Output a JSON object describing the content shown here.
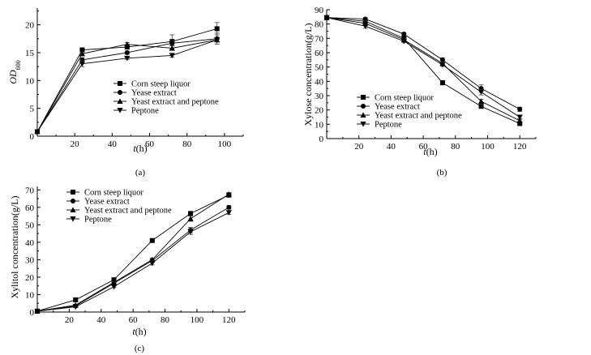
{
  "chart_data": [
    {
      "id": "a",
      "type": "line",
      "panel_label": "(a)",
      "xlabel_italic": "t",
      "xlabel_unit": "(h)",
      "ylabel_main": "OD",
      "ylabel_sub": "600",
      "xlim": [
        0,
        110
      ],
      "ylim": [
        0,
        23
      ],
      "xticks": [
        20,
        40,
        60,
        80,
        100
      ],
      "yticks": [
        0,
        5,
        10,
        15,
        20
      ],
      "legend_position": "center-right",
      "series": [
        {
          "name": "Corn steep liquor",
          "marker": "square",
          "x": [
            0,
            24,
            48,
            72,
            96
          ],
          "y": [
            0.8,
            15.5,
            16.0,
            17.0,
            19.3
          ],
          "err": [
            0,
            0.2,
            0.3,
            1.2,
            1.1
          ]
        },
        {
          "name": "Yease extract",
          "marker": "circle",
          "x": [
            0,
            24,
            48,
            72,
            96
          ],
          "y": [
            0.8,
            13.7,
            15.0,
            16.7,
            17.5
          ],
          "err": [
            0,
            0.4,
            0.3,
            0.4,
            1.0
          ]
        },
        {
          "name": "Yeast extract and peptone",
          "marker": "triangle-up",
          "x": [
            0,
            24,
            48,
            72,
            96
          ],
          "y": [
            0.8,
            14.8,
            16.5,
            15.8,
            17.3
          ],
          "err": [
            0,
            0.3,
            0.3,
            0.4,
            0.4
          ]
        },
        {
          "name": "Peptone",
          "marker": "triangle-down",
          "x": [
            0,
            24,
            48,
            72,
            96
          ],
          "y": [
            0.8,
            13.0,
            14.0,
            14.5,
            17.3
          ],
          "err": [
            0,
            0.5,
            0.2,
            0.3,
            0.4
          ]
        }
      ]
    },
    {
      "id": "b",
      "type": "line",
      "panel_label": "(b)",
      "xlabel_italic": "t",
      "xlabel_unit": "(h)",
      "ylabel_main": "Xylose concentration(g/L)",
      "ylabel_sub": "",
      "xlim": [
        0,
        130
      ],
      "ylim": [
        0,
        90
      ],
      "xticks": [
        20,
        40,
        60,
        80,
        100,
        120
      ],
      "yticks": [
        0,
        10,
        20,
        30,
        40,
        50,
        60,
        70,
        80,
        90
      ],
      "legend_position": "bottom-left",
      "series": [
        {
          "name": "Corn steep liquor",
          "marker": "square",
          "x": [
            0,
            24,
            48,
            72,
            96,
            120
          ],
          "y": [
            84.5,
            82.0,
            70.0,
            39.0,
            22.5,
            10.5
          ],
          "err": [
            0,
            1.0,
            1.0,
            1.5,
            1.0,
            0.8
          ]
        },
        {
          "name": "Yease extract",
          "marker": "circle",
          "x": [
            0,
            24,
            48,
            72,
            96,
            120
          ],
          "y": [
            84.5,
            83.5,
            73.0,
            55.0,
            35.0,
            20.5
          ],
          "err": [
            0,
            1.0,
            1.0,
            1.5,
            2.5,
            1.5
          ]
        },
        {
          "name": "Yeast extract and peptone",
          "marker": "triangle-up",
          "x": [
            0,
            24,
            48,
            72,
            96,
            120
          ],
          "y": [
            84.5,
            80.5,
            69.0,
            52.5,
            26.0,
            12.5
          ],
          "err": [
            0,
            1.5,
            1.0,
            1.0,
            1.5,
            1.0
          ]
        },
        {
          "name": "Peptone",
          "marker": "triangle-down",
          "x": [
            0,
            24,
            48,
            72,
            96,
            120
          ],
          "y": [
            84.5,
            78.5,
            68.0,
            51.5,
            32.5,
            15.0
          ],
          "err": [
            0,
            1.5,
            1.0,
            1.0,
            2.0,
            1.0
          ]
        }
      ]
    },
    {
      "id": "c",
      "type": "line",
      "panel_label": "(c)",
      "xlabel_italic": "t",
      "xlabel_unit": "(h)",
      "ylabel_main": "Xylitol concentration(g/L)",
      "ylabel_sub": "",
      "xlim": [
        0,
        130
      ],
      "ylim": [
        0,
        72
      ],
      "xticks": [
        20,
        40,
        60,
        80,
        100,
        120
      ],
      "yticks": [
        0,
        10,
        20,
        30,
        40,
        50,
        60,
        70
      ],
      "legend_position": "top-left",
      "series": [
        {
          "name": "Corn steep liquor",
          "marker": "square",
          "x": [
            0,
            24,
            48,
            72,
            96,
            120
          ],
          "y": [
            0.5,
            7.0,
            18.5,
            41.0,
            56.5,
            67.0
          ],
          "err": [
            0,
            0.5,
            0.5,
            0.8,
            1.0,
            1.0
          ]
        },
        {
          "name": "Yease extract",
          "marker": "circle",
          "x": [
            0,
            24,
            48,
            72,
            96,
            120
          ],
          "y": [
            0.5,
            3.5,
            16.5,
            29.5,
            47.0,
            60.0
          ],
          "err": [
            0,
            0.5,
            0.5,
            1.0,
            1.5,
            1.0
          ]
        },
        {
          "name": "Yeast extract and peptone",
          "marker": "triangle-up",
          "x": [
            0,
            24,
            48,
            72,
            96,
            120
          ],
          "y": [
            0.5,
            4.0,
            17.0,
            30.0,
            53.5,
            67.5
          ],
          "err": [
            0,
            0.5,
            0.5,
            1.0,
            1.5,
            1.0
          ]
        },
        {
          "name": "Peptone",
          "marker": "triangle-down",
          "x": [
            0,
            24,
            48,
            72,
            96,
            120
          ],
          "y": [
            0.5,
            3.0,
            14.5,
            28.0,
            46.0,
            57.0
          ],
          "err": [
            0,
            0.5,
            0.5,
            1.0,
            1.5,
            1.0
          ]
        }
      ]
    }
  ]
}
